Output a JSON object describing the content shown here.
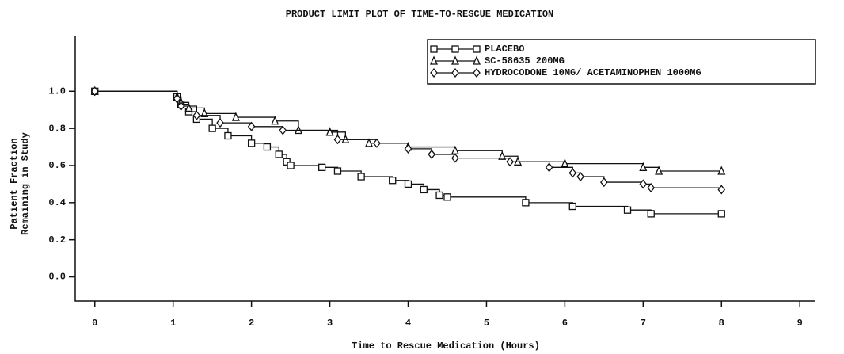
{
  "chart_data": {
    "type": "line",
    "step": "post",
    "title": "PRODUCT LIMIT PLOT OF TIME-TO-RESCUE MEDICATION",
    "xlabel": "Time to Rescue Medication (Hours)",
    "ylabel": [
      "Patient Fraction",
      "Remaining in Study"
    ],
    "xlim": [
      -0.25,
      9.2
    ],
    "ylim": [
      -0.13,
      1.3
    ],
    "xticks": [
      0,
      1,
      2,
      3,
      4,
      5,
      6,
      7,
      8,
      9
    ],
    "yticks": [
      {
        "value": 0.0,
        "label": "0.0"
      },
      {
        "value": 0.2,
        "label": "0.2"
      },
      {
        "value": 0.4,
        "label": "0.4"
      },
      {
        "value": 0.6,
        "label": "0.6"
      },
      {
        "value": 0.8,
        "label": "0.8"
      },
      {
        "value": 1.0,
        "label": "1.0"
      }
    ],
    "legend": "upper right",
    "series": [
      {
        "name": "PLACEBO",
        "color": "#111111",
        "marker": "square",
        "x": [
          0,
          1.05,
          1.1,
          1.2,
          1.3,
          1.5,
          1.7,
          2.0,
          2.2,
          2.35,
          2.45,
          2.5,
          2.9,
          3.1,
          3.4,
          3.8,
          4.0,
          4.2,
          4.4,
          4.5,
          5.5,
          6.1,
          6.8,
          7.1,
          8.0
        ],
        "values": [
          1.0,
          0.97,
          0.93,
          0.89,
          0.85,
          0.8,
          0.76,
          0.72,
          0.7,
          0.66,
          0.62,
          0.6,
          0.59,
          0.57,
          0.54,
          0.52,
          0.5,
          0.47,
          0.44,
          0.43,
          0.4,
          0.38,
          0.36,
          0.34,
          0.34
        ]
      },
      {
        "name": "SC-58635 200MG",
        "color": "#111111",
        "marker": "triangle",
        "x": [
          0,
          1.05,
          1.1,
          1.2,
          1.4,
          1.8,
          2.3,
          2.6,
          3.0,
          3.2,
          3.5,
          4.0,
          4.6,
          5.2,
          5.4,
          6.0,
          7.0,
          7.2,
          8.0
        ],
        "values": [
          1.0,
          0.97,
          0.94,
          0.91,
          0.88,
          0.86,
          0.84,
          0.79,
          0.78,
          0.74,
          0.72,
          0.7,
          0.68,
          0.65,
          0.62,
          0.61,
          0.59,
          0.57,
          0.57
        ]
      },
      {
        "name": "HYDROCODONE 10MG/ ACETAMINOPHEN 1000MG",
        "color": "#111111",
        "marker": "diamond",
        "x": [
          0,
          1.05,
          1.1,
          1.3,
          1.6,
          2.0,
          2.4,
          3.1,
          3.6,
          4.0,
          4.3,
          4.6,
          5.3,
          5.8,
          6.1,
          6.2,
          6.5,
          7.0,
          7.1,
          8.0
        ],
        "values": [
          1.0,
          0.96,
          0.92,
          0.87,
          0.83,
          0.81,
          0.79,
          0.74,
          0.72,
          0.69,
          0.66,
          0.64,
          0.62,
          0.59,
          0.56,
          0.54,
          0.51,
          0.5,
          0.48,
          0.47
        ]
      }
    ]
  }
}
